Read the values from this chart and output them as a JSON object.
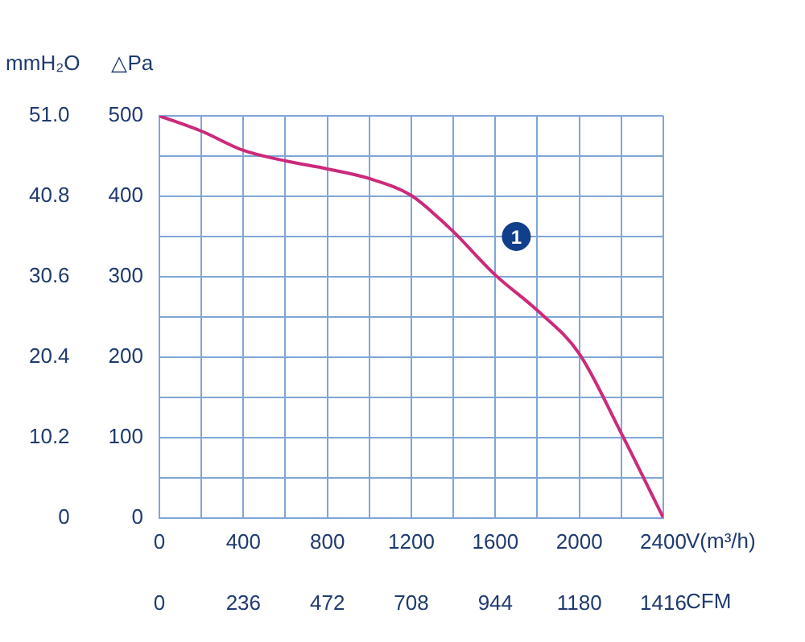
{
  "chart_data": {
    "type": "line",
    "ylabel": "△Pa",
    "y2label": "mmH₂O",
    "xlabel": "V(m³/h)",
    "x2label": "CFM",
    "x": [
      0,
      200,
      400,
      600,
      800,
      1000,
      1200,
      1300,
      1400,
      1600,
      1800,
      2000,
      2200,
      2400
    ],
    "series": [
      {
        "color": "#cc2a7a",
        "values": [
          500,
          481,
          457,
          444,
          434,
          422,
          401,
          380,
          356,
          302,
          258,
          204,
          105,
          0
        ]
      }
    ],
    "annotations": [
      {
        "text": "1",
        "x": 1700,
        "y": 350
      }
    ],
    "xlim": [
      0,
      2400
    ],
    "xticks": [
      0,
      {
        "value": 200,
        "label": null
      },
      400,
      {
        "value": 600,
        "label": null
      },
      800,
      {
        "value": 1000,
        "label": null
      },
      1200,
      {
        "value": 1400,
        "label": null
      },
      1600,
      {
        "value": 1800,
        "label": null
      },
      2000,
      {
        "value": 2200,
        "label": null
      },
      2400
    ],
    "x2lim": [
      0,
      1416
    ],
    "x2ticks": [
      0,
      236,
      472,
      708,
      944,
      1180,
      1416
    ],
    "ylim": [
      0,
      500
    ],
    "yticks": [
      0,
      {
        "value": 50,
        "label": null
      },
      100,
      {
        "value": 150,
        "label": null
      },
      200,
      {
        "value": 250,
        "label": null
      },
      300,
      {
        "value": 350,
        "label": null
      },
      400,
      {
        "value": 450,
        "label": null
      },
      500
    ],
    "y2lim": [
      0,
      51
    ],
    "y2ticks": [
      0,
      10.2,
      20.4,
      30.6,
      40.8,
      {
        "value": 51,
        "label": "51.0"
      }
    ],
    "grid": true,
    "marker": "none",
    "line_style": "solid",
    "legend": false
  }
}
